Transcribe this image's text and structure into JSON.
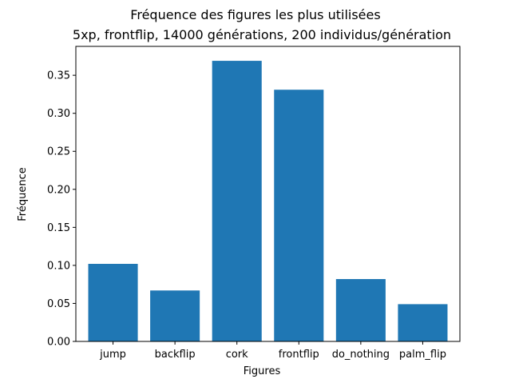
{
  "chart_data": {
    "type": "bar",
    "title": "Fréquence des figures les plus utilisées",
    "subtitle": "5xp, frontflip, 14000 générations, 200 individus/génération",
    "xlabel": "Figures",
    "ylabel": "Fréquence",
    "categories": [
      "jump",
      "backflip",
      "cork",
      "frontflip",
      "do_nothing",
      "palm_flip"
    ],
    "values": [
      0.102,
      0.067,
      0.369,
      0.331,
      0.082,
      0.049
    ],
    "ylim": [
      0,
      0.388
    ],
    "yticks": [
      "0.00",
      "0.05",
      "0.10",
      "0.15",
      "0.20",
      "0.25",
      "0.30",
      "0.35"
    ],
    "grid": false,
    "bar_color": "#1f77b4"
  }
}
